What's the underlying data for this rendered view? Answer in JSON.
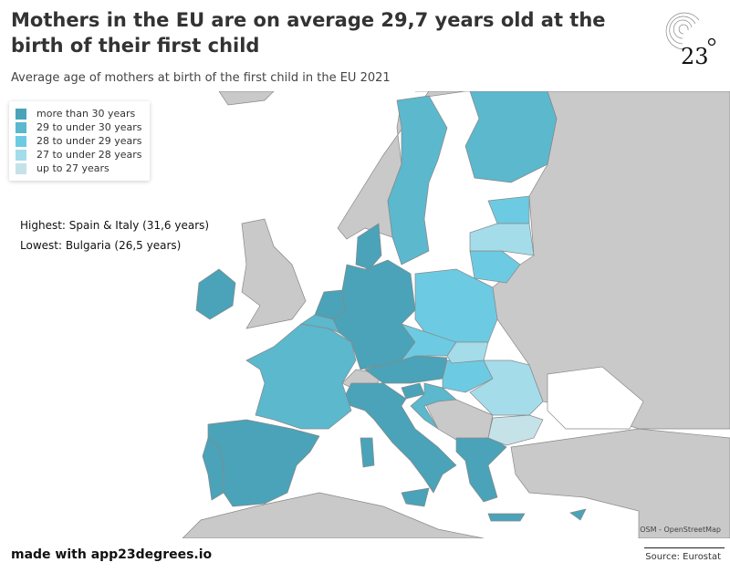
{
  "header": {
    "title": "Mothers in the EU are on average 29,7 years old at the birth of their first child",
    "subtitle": "Average age of mothers at birth of the first child in the EU 2021"
  },
  "legend": [
    {
      "label": "more than 30 years",
      "color": "#4aa3b8"
    },
    {
      "label": "29 to under 30 years",
      "color": "#5bb8cd"
    },
    {
      "label": "28 to under 29 years",
      "color": "#6ccbe2"
    },
    {
      "label": "27 to under 28 years",
      "color": "#a4dcea"
    },
    {
      "label": "up to 27 years",
      "color": "#c6e2e9"
    }
  ],
  "annotations": {
    "highest": "Highest: Spain & Italy (31,6 years)",
    "lowest": "Lowest: Bulgaria (26,5 years)"
  },
  "map": {
    "land_color": "#c9c9c9",
    "countries": [
      {
        "name": "Spain",
        "cat": 0
      },
      {
        "name": "Italy",
        "cat": 0
      },
      {
        "name": "Portugal",
        "cat": 0
      },
      {
        "name": "Germany",
        "cat": 0
      },
      {
        "name": "Netherlands",
        "cat": 0
      },
      {
        "name": "Denmark",
        "cat": 0
      },
      {
        "name": "Ireland",
        "cat": 0
      },
      {
        "name": "Greece",
        "cat": 0
      },
      {
        "name": "Austria",
        "cat": 0
      },
      {
        "name": "Cyprus",
        "cat": 0
      },
      {
        "name": "Slovenia",
        "cat": 0
      },
      {
        "name": "France",
        "cat": 1
      },
      {
        "name": "Sweden",
        "cat": 1
      },
      {
        "name": "Finland",
        "cat": 1
      },
      {
        "name": "Belgium",
        "cat": 1
      },
      {
        "name": "Croatia",
        "cat": 1
      },
      {
        "name": "Poland",
        "cat": 2
      },
      {
        "name": "Czechia",
        "cat": 2
      },
      {
        "name": "Lithuania",
        "cat": 2
      },
      {
        "name": "Estonia",
        "cat": 2
      },
      {
        "name": "Hungary",
        "cat": 2
      },
      {
        "name": "Latvia",
        "cat": 3
      },
      {
        "name": "Romania",
        "cat": 3
      },
      {
        "name": "Slovakia",
        "cat": 3
      },
      {
        "name": "Bulgaria",
        "cat": 4
      }
    ]
  },
  "credit": "OSM - OpenStreetMap",
  "footer": "made with app23degrees.io",
  "source": "Source: Eurostat",
  "logo_text": "23°"
}
